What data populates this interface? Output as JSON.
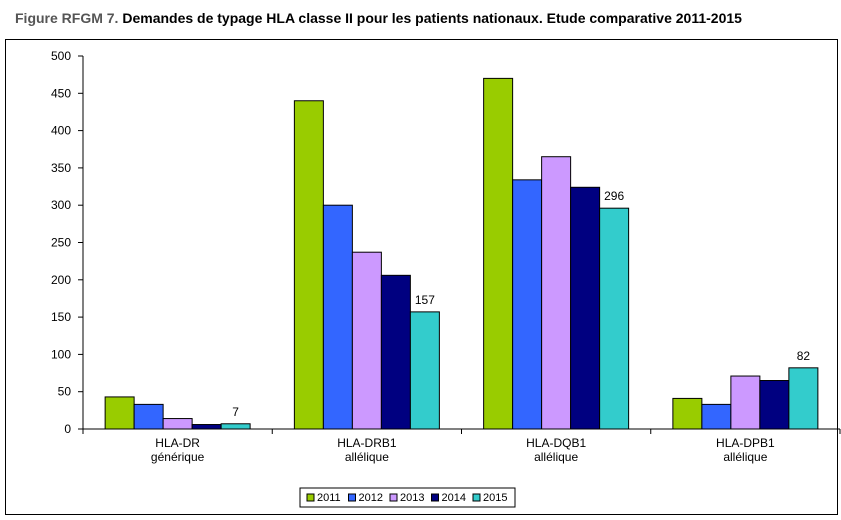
{
  "title": {
    "prefix": "Figure RFGM 7.",
    "main": "Demandes de typage HLA classe II pour les patients nationaux. Etude comparative 2011-2015"
  },
  "chart_data": {
    "type": "bar",
    "categories": [
      [
        "HLA-DR",
        "générique"
      ],
      [
        "HLA-DRB1",
        "allélique"
      ],
      [
        "HLA-DQB1",
        "allélique"
      ],
      [
        "HLA-DPB1",
        "allélique"
      ]
    ],
    "series": [
      {
        "name": "2011",
        "color": "#99cc00",
        "values": [
          43,
          440,
          470,
          41
        ]
      },
      {
        "name": "2012",
        "color": "#3366ff",
        "values": [
          33,
          300,
          334,
          33
        ]
      },
      {
        "name": "2013",
        "color": "#cc99ff",
        "values": [
          14,
          237,
          365,
          71
        ]
      },
      {
        "name": "2014",
        "color": "#000080",
        "values": [
          6,
          206,
          324,
          65
        ]
      },
      {
        "name": "2015",
        "color": "#33cccc",
        "values": [
          7,
          157,
          296,
          82
        ]
      }
    ],
    "data_labels": {
      "series": "2015",
      "values": [
        "7",
        "157",
        "296",
        "82"
      ]
    },
    "ylim": [
      0,
      500
    ],
    "yticks": [
      "0",
      "50",
      "100",
      "150",
      "200",
      "250",
      "300",
      "350",
      "400",
      "450",
      "500"
    ],
    "xlabel": "",
    "ylabel": "",
    "grid": false,
    "legend_position": "bottom"
  }
}
